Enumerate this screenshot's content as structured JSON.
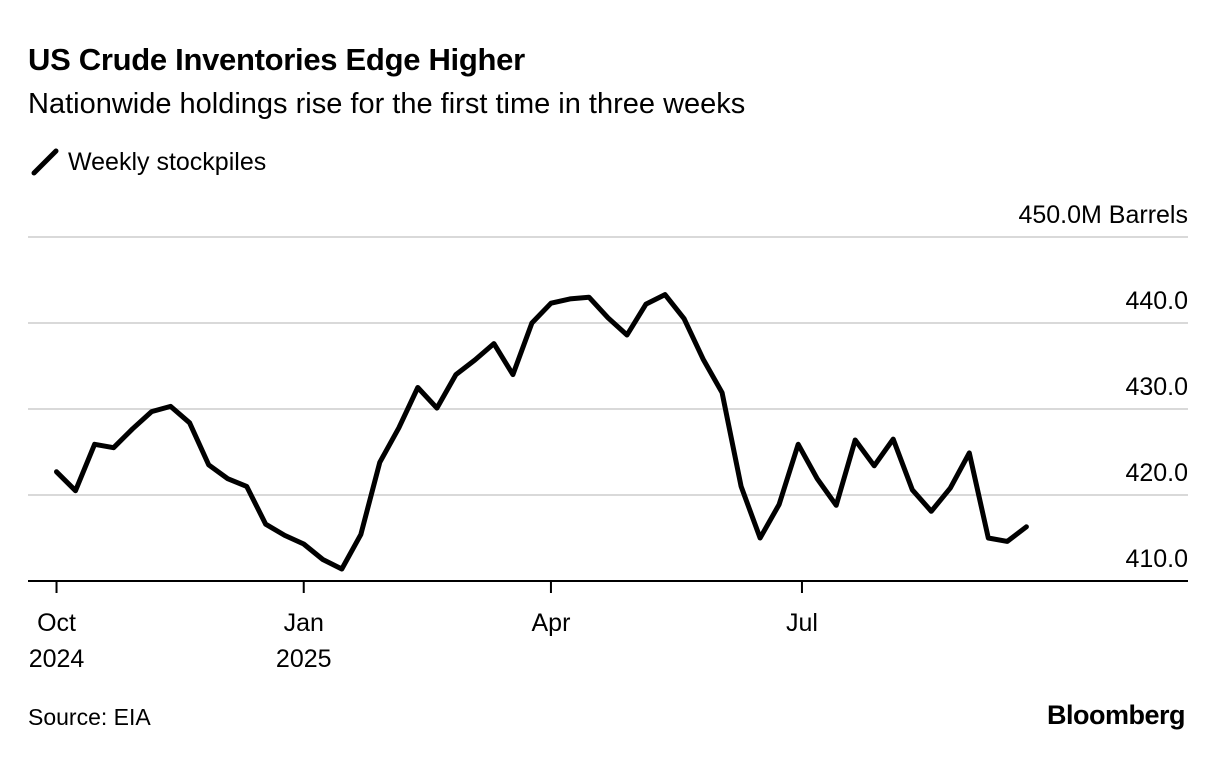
{
  "header": {
    "title": "US Crude Inventories Edge Higher",
    "subtitle": "Nationwide holdings rise for the first time in three weeks"
  },
  "legend": {
    "label": "Weekly stockpiles",
    "color": "#000000"
  },
  "footer": {
    "source": "Source: EIA",
    "brand": "Bloomberg"
  },
  "colors": {
    "line": "#000000",
    "grid": "#d9d9d9",
    "axis": "#000000"
  },
  "chart_data": {
    "type": "line",
    "title": "US Crude Inventories Edge Higher",
    "subtitle": "Nationwide holdings rise for the first time in three weeks",
    "xlabel": "",
    "ylabel": "Barrels",
    "ylim": [
      410.0,
      450.0
    ],
    "y_ticks": [
      {
        "value": 450,
        "label": "450.0M Barrels"
      },
      {
        "value": 440,
        "label": "440.0"
      },
      {
        "value": 430,
        "label": "430.0"
      },
      {
        "value": 420,
        "label": "420.0"
      },
      {
        "value": 410,
        "label": "410.0"
      }
    ],
    "x_ticks": [
      {
        "week": 0,
        "line1": "Oct",
        "line2": "2024"
      },
      {
        "week": 13,
        "line1": "Jan",
        "line2": "2025"
      },
      {
        "week": 26,
        "line1": "Apr",
        "line2": ""
      },
      {
        "week": 39.2,
        "line1": "Jul",
        "line2": ""
      }
    ],
    "x_range_weeks": [
      -1.5,
      59.5
    ],
    "grid": true,
    "legend_position": "top-left",
    "series": [
      {
        "name": "Weekly stockpiles",
        "x": [
          0,
          1,
          2,
          3,
          4,
          5,
          6,
          7,
          8,
          9,
          10,
          11,
          12,
          13,
          14,
          15,
          16,
          17,
          18,
          19,
          20,
          21,
          22,
          23,
          24,
          25,
          26,
          27,
          28,
          29,
          30,
          31,
          32,
          33,
          34,
          35,
          36,
          37,
          38,
          39,
          40,
          41,
          42,
          43,
          44,
          45,
          46,
          47,
          48,
          49,
          50,
          51
        ],
        "values": [
          422.7,
          420.5,
          425.9,
          425.5,
          427.7,
          429.7,
          430.3,
          428.4,
          423.5,
          421.9,
          421.0,
          416.6,
          415.3,
          414.3,
          412.5,
          411.4,
          415.4,
          423.8,
          427.8,
          432.5,
          430.1,
          434.0,
          435.7,
          437.6,
          434.0,
          440.0,
          442.3,
          442.8,
          443.0,
          440.6,
          438.6,
          442.2,
          443.3,
          440.5,
          435.8,
          431.9,
          421.0,
          415.0,
          418.9,
          425.9,
          421.9,
          418.8,
          426.4,
          423.4,
          426.5,
          420.6,
          418.1,
          420.8,
          424.9,
          415.0,
          414.6,
          416.3
        ]
      }
    ]
  }
}
